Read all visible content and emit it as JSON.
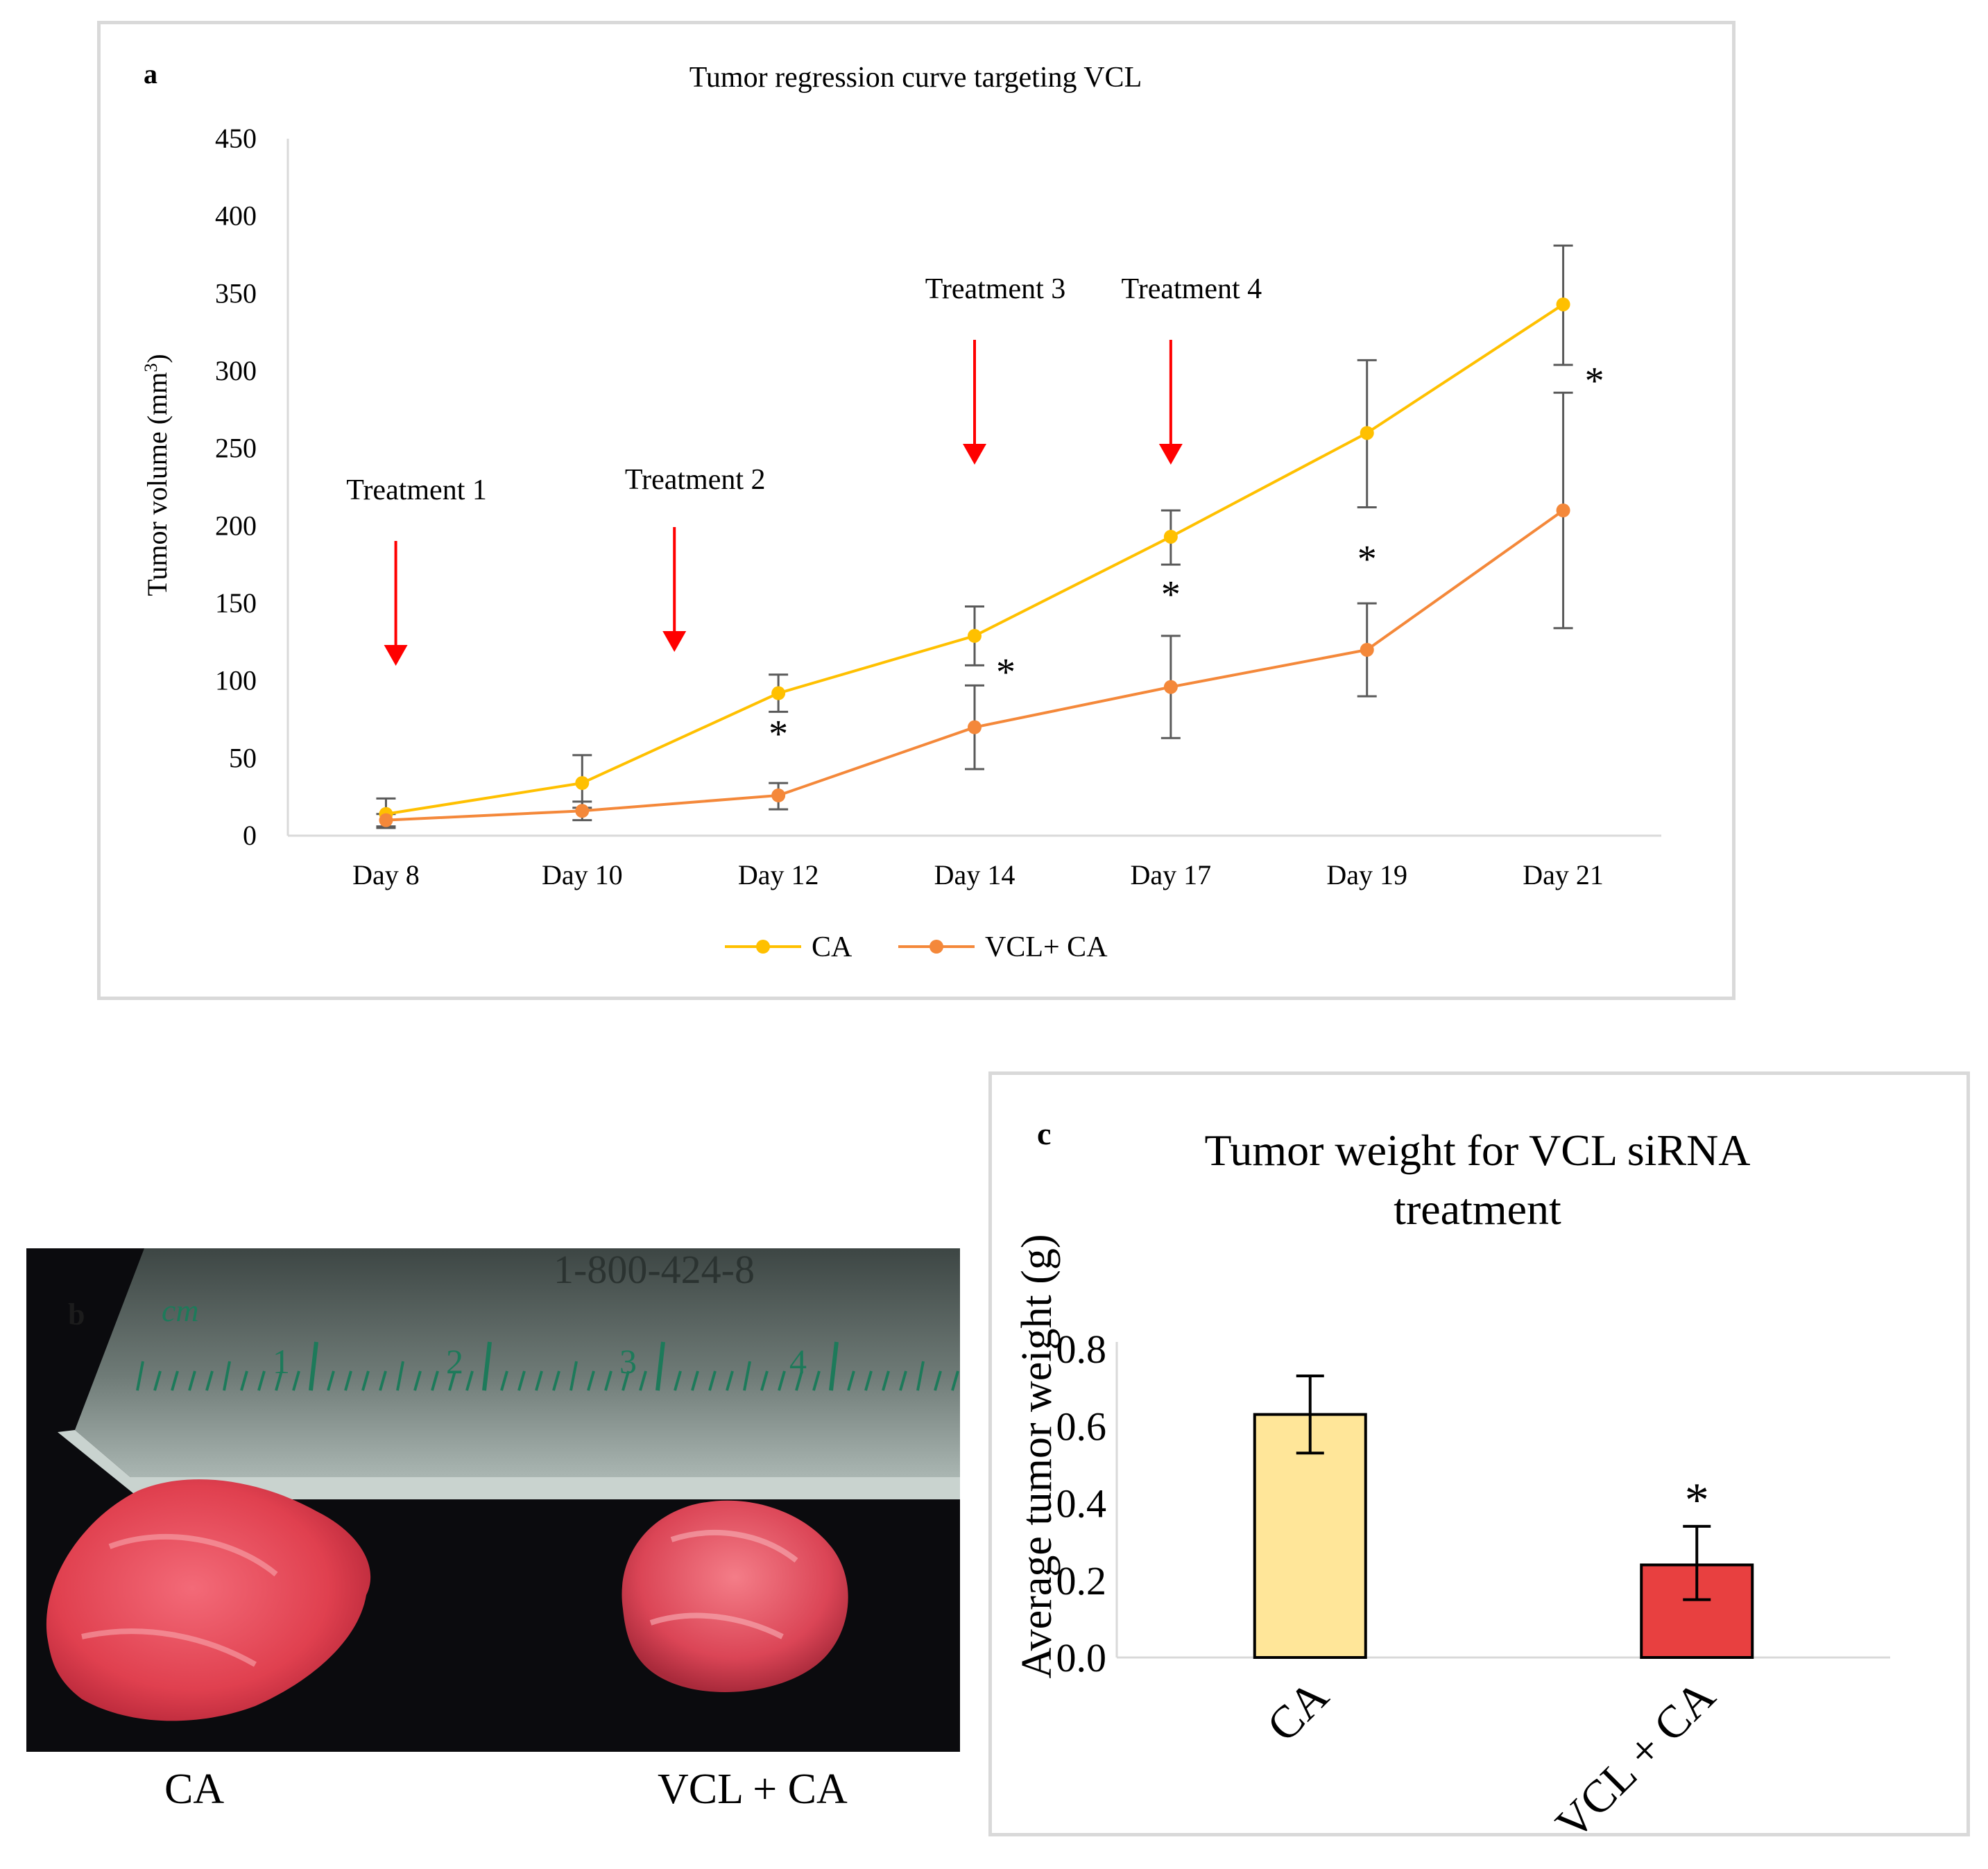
{
  "figure": {
    "panel_a_letter": "a",
    "panel_b_letter": "b",
    "panel_c_letter": "c"
  },
  "chart_data": [
    {
      "type": "line",
      "title": "Tumor regression curve targeting VCL",
      "xlabel": "",
      "ylabel": "Tumor volume (mm3)",
      "ylabel_main": "Tumor volume (mm",
      "ylabel_sup": "3",
      "ylabel_close": ")",
      "categories": [
        "Day 8",
        "Day 10",
        "Day 12",
        "Day 14",
        "Day 17",
        "Day 19",
        "Day 21"
      ],
      "ylim": [
        0,
        450
      ],
      "yticks": [
        0,
        50,
        100,
        150,
        200,
        250,
        300,
        350,
        400,
        450
      ],
      "series": [
        {
          "name": "CA",
          "color": "#FFC000",
          "values": [
            14,
            34,
            92,
            129,
            193,
            260,
            343
          ],
          "error_low": [
            5,
            18,
            80,
            110,
            175,
            212,
            304
          ],
          "error_high": [
            24,
            52,
            104,
            148,
            210,
            307,
            381
          ]
        },
        {
          "name": "VCL+ CA",
          "color": "#F4883A",
          "values": [
            10,
            16,
            26,
            70,
            96,
            120,
            210
          ],
          "error_low": [
            6,
            10,
            17,
            43,
            63,
            90,
            134
          ],
          "error_high": [
            14,
            22,
            34,
            97,
            129,
            150,
            286
          ]
        }
      ],
      "treatments": [
        {
          "label": "Treatment  1",
          "x_position": 0.05
        },
        {
          "label": "Treatment  2",
          "x_position": 1.47
        },
        {
          "label": "Treatment  3",
          "x_position": 3.0
        },
        {
          "label": "Treatment  4",
          "x_position": 4.0
        }
      ],
      "significance": [
        {
          "label": "*",
          "category": "Day 12",
          "y": 70
        },
        {
          "label": "*",
          "category": "Day 14",
          "y": 110
        },
        {
          "label": "*",
          "category": "Day 17",
          "y": 160
        },
        {
          "label": "*",
          "category": "Day 19",
          "y": 183
        },
        {
          "label": "*",
          "category": "Day 21",
          "y": 298
        }
      ],
      "arrow_color": "#FF0000",
      "legend": "bottom"
    },
    {
      "type": "bar",
      "title": "Tumor weight  for VCL  siRNA treatment",
      "title_line1": "Tumor weight  for VCL  siRNA",
      "title_line2": "treatment",
      "xlabel": "",
      "ylabel": "Average  tumor  weight  (g)",
      "categories": [
        "CA",
        "VCL + CA"
      ],
      "values": [
        0.63,
        0.24
      ],
      "error_low": [
        0.53,
        0.15
      ],
      "error_high": [
        0.73,
        0.34
      ],
      "colors": [
        "#FFE699",
        "#E84040"
      ],
      "ylim": [
        0,
        0.8
      ],
      "yticks": [
        "0.0",
        "0.2",
        "0.4",
        "0.6",
        "0.8"
      ],
      "significance": [
        {
          "label": "*",
          "category": "VCL + CA"
        }
      ]
    }
  ],
  "photo": {
    "ruler_unit": "cm",
    "ruler_numbers": [
      "1",
      "2",
      "3",
      "4"
    ],
    "ruler_phone": "1-800-424-8",
    "captions": [
      "CA",
      "VCL + CA"
    ]
  }
}
